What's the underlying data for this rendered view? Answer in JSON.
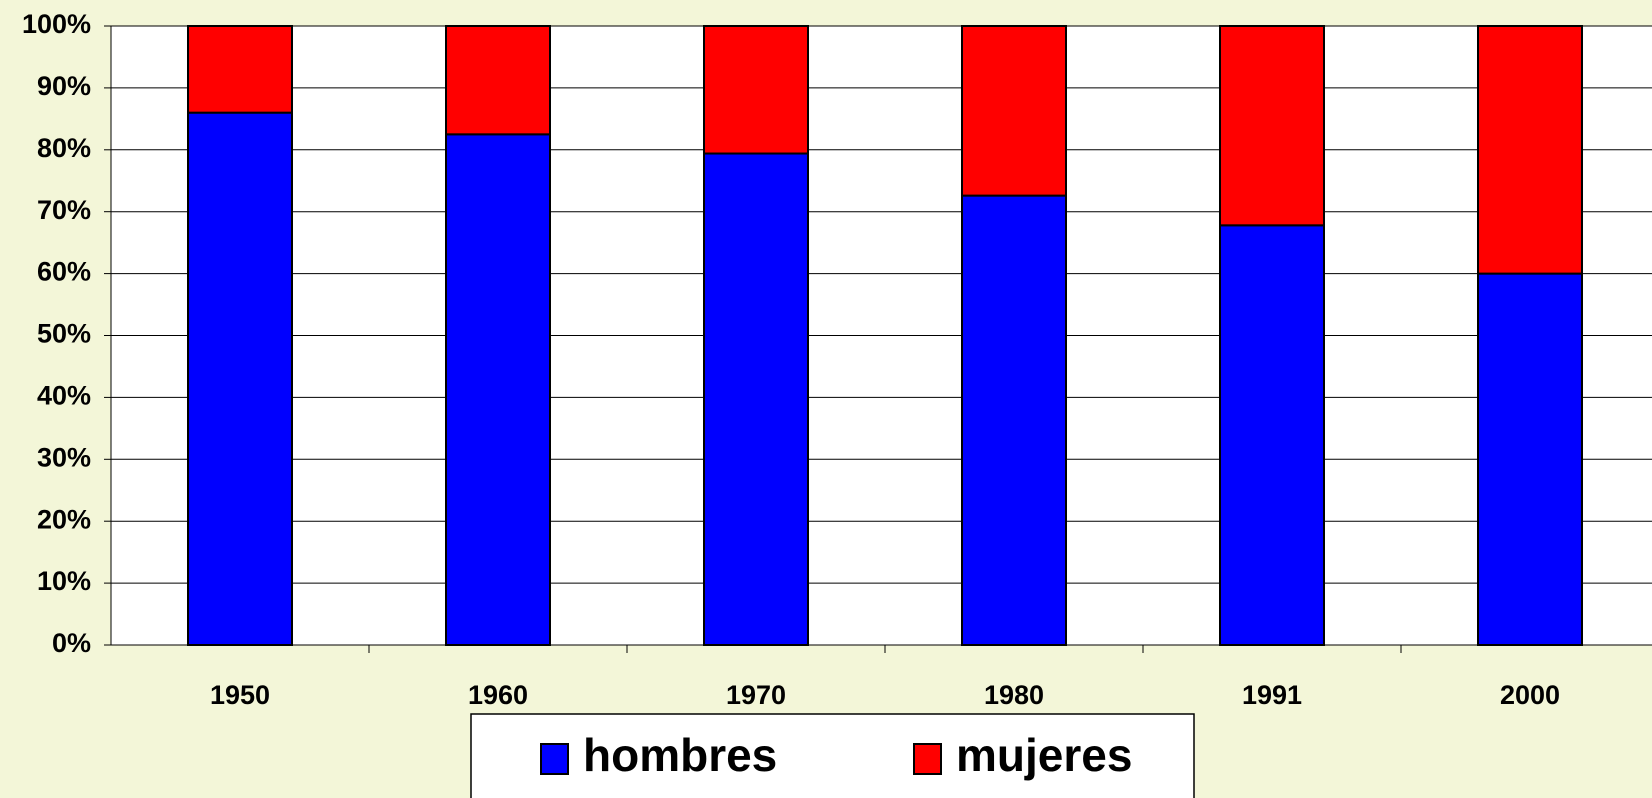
{
  "chart_data": {
    "type": "stacked-bar",
    "categories": [
      "1950",
      "1960",
      "1970",
      "1980",
      "1991",
      "2000"
    ],
    "series": [
      {
        "name": "hombres",
        "color": "#0000ff",
        "values": [
          86,
          82.5,
          79.4,
          72.6,
          67.8,
          60
        ]
      },
      {
        "name": "mujeres",
        "color": "#ff0000",
        "values": [
          14,
          17.5,
          20.6,
          27.4,
          32.2,
          40
        ]
      }
    ],
    "ylim": [
      0,
      100
    ],
    "yticks": [
      {
        "value": 0,
        "label": "0%"
      },
      {
        "value": 10,
        "label": "10%"
      },
      {
        "value": 20,
        "label": "20%"
      },
      {
        "value": 30,
        "label": "30%"
      },
      {
        "value": 40,
        "label": "40%"
      },
      {
        "value": 50,
        "label": "50%"
      },
      {
        "value": 60,
        "label": "60%"
      },
      {
        "value": 70,
        "label": "70%"
      },
      {
        "value": 80,
        "label": "80%"
      },
      {
        "value": 90,
        "label": "90%"
      },
      {
        "value": 100,
        "label": "100%"
      }
    ],
    "grid": true,
    "legend": "bottom"
  }
}
